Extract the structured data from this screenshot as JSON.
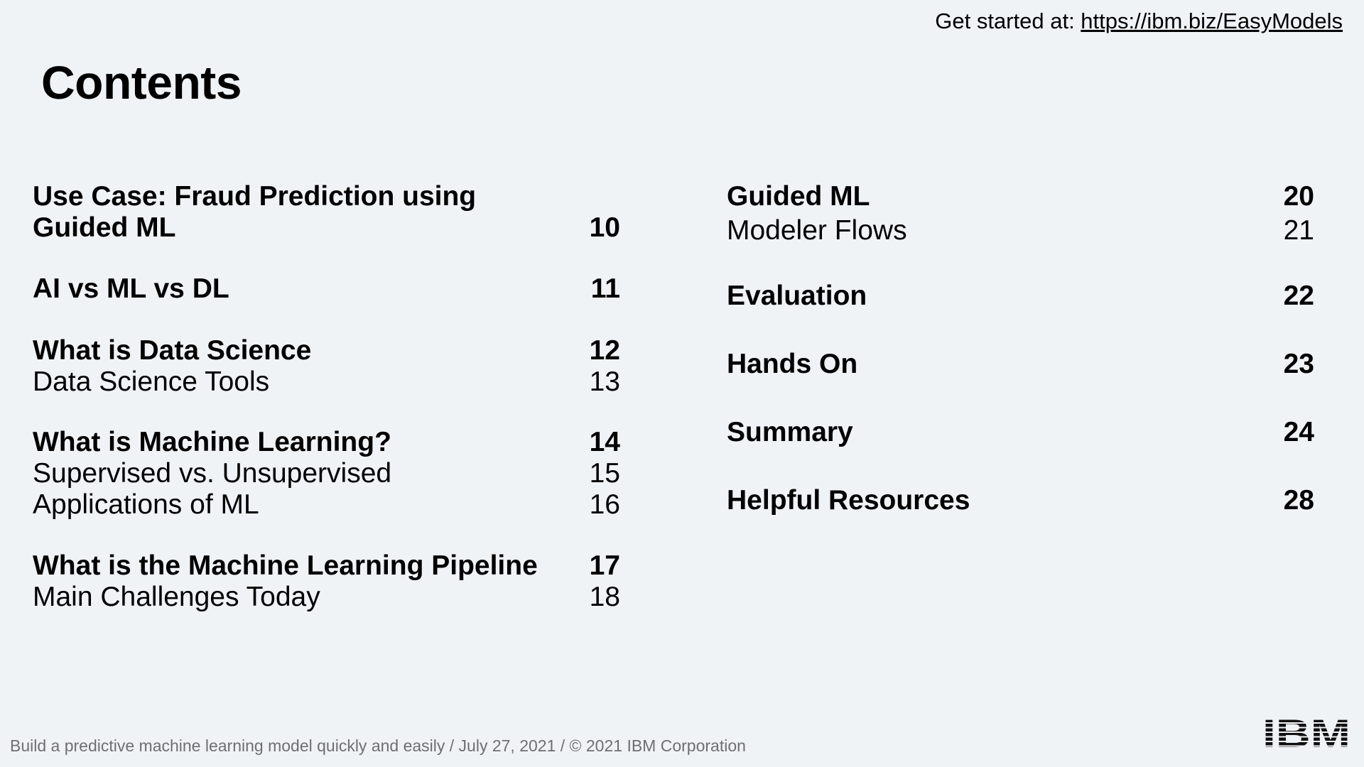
{
  "header": {
    "prefix": "Get started at: ",
    "link_text": "https://ibm.biz/EasyModels"
  },
  "title": "Contents",
  "left": [
    {
      "title": "Use Case: Fraud Prediction using",
      "title2": "Guided ML",
      "page": "10",
      "subs": []
    },
    {
      "title": "AI vs ML vs DL",
      "page": "11",
      "subs": []
    },
    {
      "title": "What is Data Science",
      "page": "12",
      "subs": [
        {
          "label": "Data Science Tools",
          "page": "13"
        }
      ]
    },
    {
      "title": "What is Machine Learning?",
      "page": "14",
      "subs": [
        {
          "label": "Supervised vs. Unsupervised",
          "page": "15"
        },
        {
          "label": "Applications of ML",
          "page": "16"
        }
      ]
    },
    {
      "title": "What is the Machine Learning Pipeline",
      "page": "17",
      "subs": [
        {
          "label": "Main Challenges Today",
          "page": "18"
        }
      ]
    }
  ],
  "right": [
    {
      "title": "Guided ML",
      "page": "20",
      "subs": [
        {
          "label": "Modeler Flows",
          "page": "21"
        }
      ]
    },
    {
      "title": "Evaluation",
      "page": "22",
      "subs": []
    },
    {
      "title": "Hands On",
      "page": "23",
      "subs": []
    },
    {
      "title": "Summary",
      "page": "24",
      "subs": []
    },
    {
      "title": "Helpful Resources",
      "page": "28",
      "subs": []
    }
  ],
  "footer": "Build a predictive machine learning model quickly and easily / July 27, 2021 / © 2021 IBM Corporation",
  "logo": {
    "icon": "ibm-logo-icon",
    "text": "IBM"
  }
}
